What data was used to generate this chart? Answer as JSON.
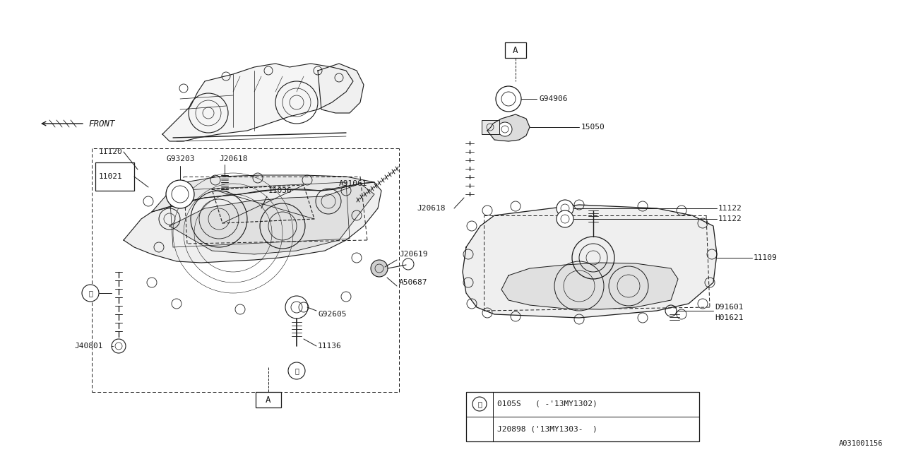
{
  "bg_color": "#ffffff",
  "line_color": "#1a1a1a",
  "fig_width": 12.8,
  "fig_height": 6.4,
  "dpi": 100,
  "bottom_right_label": "A031001156",
  "legend_row1": "0105S   ( -'13MY1302)",
  "legend_row2": "J20898 ('13MY1303-  )"
}
